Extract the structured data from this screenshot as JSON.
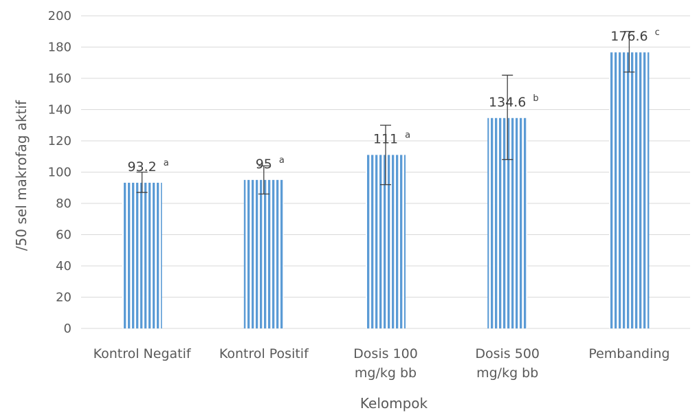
{
  "chart_data": {
    "type": "bar",
    "title": "",
    "xlabel": "Kelompok",
    "ylabel": "/50 sel makrofag aktif",
    "ylim": [
      0,
      200
    ],
    "ytick_step": 20,
    "yticks": [
      "0",
      "20",
      "40",
      "60",
      "80",
      "100",
      "120",
      "140",
      "160",
      "180",
      "200"
    ],
    "grid": true,
    "legend": "none",
    "bar_color": "#5b9bd5",
    "bar_pattern": "vertical-stripes",
    "categories": [
      [
        "Kontrol Negatif"
      ],
      [
        "Kontrol Positif"
      ],
      [
        "Dosis 100",
        "mg/kg bb"
      ],
      [
        "Dosis 500",
        "mg/kg bb"
      ],
      [
        "Pembanding"
      ]
    ],
    "values": [
      93.2,
      95,
      111,
      134.6,
      176.6
    ],
    "value_labels": [
      "93.2",
      "95",
      "111",
      "134.6",
      "176.6"
    ],
    "significance": [
      "a",
      "a",
      "a",
      "b",
      "c"
    ],
    "error_bars": [
      {
        "low": 87,
        "high": 100
      },
      {
        "low": 86,
        "high": 104
      },
      {
        "low": 92,
        "high": 130
      },
      {
        "low": 108,
        "high": 162
      },
      {
        "low": 164,
        "high": 190
      }
    ]
  }
}
